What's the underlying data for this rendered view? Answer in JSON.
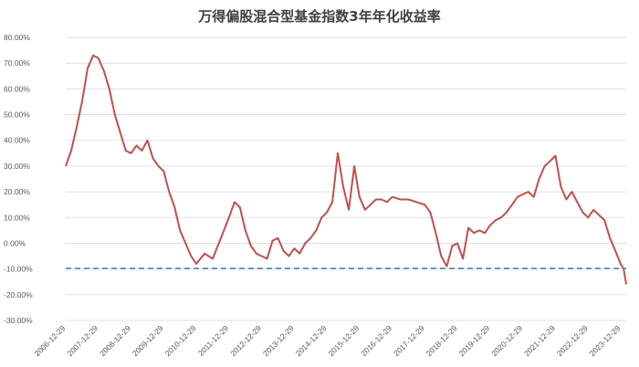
{
  "chart_data": {
    "type": "line",
    "title": "万得偏股混合型基金指数3年年化收益率",
    "xlabel": "",
    "ylabel": "",
    "ylim": [
      -30,
      80
    ],
    "y_ticks": [
      80,
      70,
      60,
      50,
      40,
      30,
      20,
      10,
      0,
      -10,
      -20,
      -30
    ],
    "y_tick_labels": [
      "80.00%",
      "70.00%",
      "60.00%",
      "50.00%",
      "40.00%",
      "30.00%",
      "20.00%",
      "10.00%",
      "0.00%",
      "-10.00%",
      "-20.00%",
      "-30.00%"
    ],
    "x_range": [
      "2006-12-29",
      "2024-02-29"
    ],
    "x_tick_labels": [
      "2006-12-29",
      "2007-12-29",
      "2008-12-29",
      "2009-12-29",
      "2010-12-29",
      "2011-12-29",
      "2012-12-29",
      "2013-12-29",
      "2014-12-29",
      "2015-12-29",
      "2016-12-29",
      "2017-12-29",
      "2018-12-29",
      "2019-12-29",
      "2020-12-29",
      "2021-12-29",
      "2022-12-29",
      "2023-12-29"
    ],
    "grid": true,
    "legend": "none",
    "series": [
      {
        "color": "#c0504d",
        "x": [
          "2006-12-29",
          "2007-02-28",
          "2007-04-30",
          "2007-06-30",
          "2007-08-31",
          "2007-10-31",
          "2007-12-29",
          "2008-02-29",
          "2008-04-30",
          "2008-06-30",
          "2008-08-31",
          "2008-10-31",
          "2008-12-29",
          "2009-02-28",
          "2009-04-30",
          "2009-06-30",
          "2009-08-31",
          "2009-10-31",
          "2009-12-29",
          "2010-02-28",
          "2010-04-30",
          "2010-06-30",
          "2010-08-31",
          "2010-10-31",
          "2010-12-29",
          "2011-03-31",
          "2011-06-30",
          "2011-09-30",
          "2011-12-29",
          "2012-02-29",
          "2012-04-30",
          "2012-06-30",
          "2012-08-31",
          "2012-10-31",
          "2012-12-29",
          "2013-02-28",
          "2013-04-30",
          "2013-06-30",
          "2013-08-31",
          "2013-10-31",
          "2013-12-29",
          "2014-02-28",
          "2014-04-30",
          "2014-06-30",
          "2014-08-31",
          "2014-10-31",
          "2014-12-29",
          "2015-02-28",
          "2015-04-30",
          "2015-06-30",
          "2015-08-31",
          "2015-10-31",
          "2015-12-29",
          "2016-02-29",
          "2016-04-30",
          "2016-06-30",
          "2016-08-31",
          "2016-10-31",
          "2016-12-29",
          "2017-03-31",
          "2017-06-30",
          "2017-09-30",
          "2017-12-29",
          "2018-02-28",
          "2018-04-30",
          "2018-06-30",
          "2018-08-31",
          "2018-10-31",
          "2018-12-29",
          "2019-02-28",
          "2019-04-30",
          "2019-06-30",
          "2019-08-31",
          "2019-10-31",
          "2019-12-29",
          "2020-02-29",
          "2020-04-30",
          "2020-06-30",
          "2020-08-31",
          "2020-10-31",
          "2020-12-29",
          "2021-02-28",
          "2021-04-30",
          "2021-06-30",
          "2021-08-31",
          "2021-10-31",
          "2021-12-29",
          "2022-02-28",
          "2022-04-30",
          "2022-06-30",
          "2022-08-31",
          "2022-10-31",
          "2022-12-29",
          "2023-02-28",
          "2023-04-30",
          "2023-06-30",
          "2023-08-31",
          "2023-10-31",
          "2023-12-29",
          "2024-01-31",
          "2024-02-29"
        ],
        "values": [
          30,
          36,
          45,
          55,
          68,
          73,
          72,
          67,
          60,
          50,
          43,
          36,
          35,
          38,
          36,
          40,
          33,
          30,
          28,
          20,
          14,
          5,
          0,
          -5,
          -8,
          -4,
          -6,
          2,
          10,
          16,
          14,
          5,
          -1,
          -4,
          -5,
          -6,
          1,
          2,
          -3,
          -5,
          -2,
          -4,
          0,
          2,
          5,
          10,
          12,
          16,
          35,
          22,
          13,
          30,
          18,
          13,
          15,
          17,
          17,
          16,
          18,
          17,
          17,
          16,
          15,
          12,
          4,
          -5,
          -9,
          -1,
          0,
          -6,
          6,
          4,
          5,
          4,
          7,
          9,
          10,
          12,
          15,
          18,
          19,
          20,
          18,
          25,
          30,
          32,
          34,
          22,
          17,
          20,
          16,
          12,
          10,
          13,
          11,
          9,
          2,
          -3,
          -8,
          -10,
          -16
        ]
      },
      {
        "color": "#4f81bd",
        "dashed": true,
        "x": [
          "2006-12-29",
          "2024-02-29"
        ],
        "values": [
          -9.8,
          -9.8
        ]
      }
    ]
  }
}
